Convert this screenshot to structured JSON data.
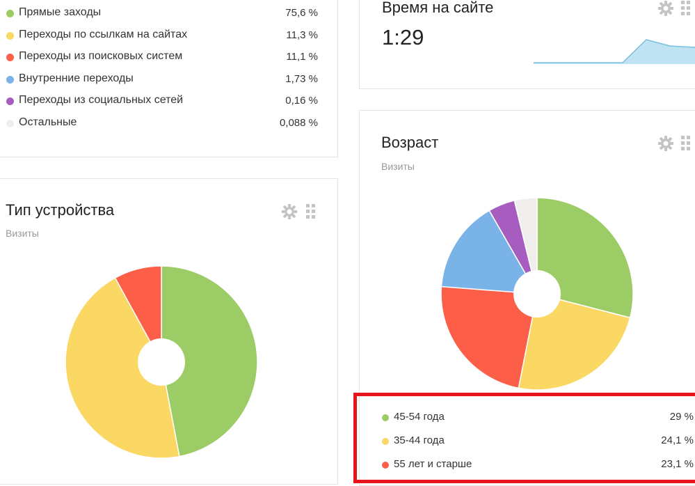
{
  "sources_legend": {
    "items": [
      {
        "label": "Прямые заходы",
        "value": "75,6 %",
        "color": "#9bcc65"
      },
      {
        "label": "Переходы по ссылкам на сайтах",
        "value": "11,3 %",
        "color": "#fbd764"
      },
      {
        "label": "Переходы из поисковых систем",
        "value": "11,1 %",
        "color": "#fd5e48"
      },
      {
        "label": "Внутренние переходы",
        "value": "1,73 %",
        "color": "#7ab3e8"
      },
      {
        "label": "Переходы из социальных сетей",
        "value": "0,16 %",
        "color": "#a65dbf"
      },
      {
        "label": "Остальные",
        "value": "0,088 %",
        "color": "#efeeec"
      }
    ]
  },
  "time_on_site": {
    "title": "Время на сайте",
    "value": "1:29"
  },
  "device_type": {
    "title": "Тип устройства",
    "subtitle": "Визиты"
  },
  "age": {
    "title": "Возраст",
    "subtitle": "Визиты",
    "legend": [
      {
        "label": "45-54 года",
        "value": "29 %",
        "color": "#9bcc65"
      },
      {
        "label": "35-44 года",
        "value": "24,1 %",
        "color": "#fbd764"
      },
      {
        "label": "55 лет и старше",
        "value": "23,1 %",
        "color": "#fd5e48"
      }
    ]
  },
  "chart_data": [
    {
      "type": "pie",
      "title": "Тип устройства",
      "series": [
        {
          "values": [
            47,
            45,
            8
          ]
        }
      ],
      "colors": [
        "#9bcc65",
        "#fbd764",
        "#fd5e48"
      ]
    },
    {
      "type": "pie",
      "title": "Возраст",
      "categories": [
        "45-54 года",
        "35-44 года",
        "55 лет и старше",
        "",
        "",
        ""
      ],
      "series": [
        {
          "values": [
            29,
            24.1,
            23.1,
            15.5,
            4.5,
            3.8
          ]
        }
      ],
      "colors": [
        "#9bcc65",
        "#fbd764",
        "#fd5e48",
        "#7ab3e8",
        "#a65dbf",
        "#efeeec"
      ]
    }
  ],
  "colors": {
    "highlight": "#e8141c",
    "icon": "#c4c4c4"
  }
}
